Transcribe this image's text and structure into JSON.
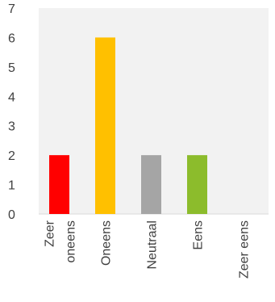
{
  "chart_data": {
    "type": "bar",
    "categories": [
      [
        "Zeer",
        "oneens"
      ],
      [
        "Oneens"
      ],
      [
        "Neutraal"
      ],
      [
        "Eens"
      ],
      [
        "Zeer eens"
      ]
    ],
    "values": [
      2,
      6,
      2,
      2,
      0
    ],
    "colors": [
      "#ff0000",
      "#ffc000",
      "#a5a5a5",
      "#8cbc2c",
      "#ffffff"
    ],
    "yticks": [
      "0",
      "1",
      "2",
      "3",
      "4",
      "5",
      "6",
      "7"
    ],
    "ylim": [
      0,
      7
    ],
    "grid": false,
    "title": "",
    "xlabel": "",
    "ylabel": ""
  },
  "colors": {
    "plot_background": "#f2f2f2",
    "axis_text": "#404040",
    "axis_line": "#d9d9d9"
  }
}
